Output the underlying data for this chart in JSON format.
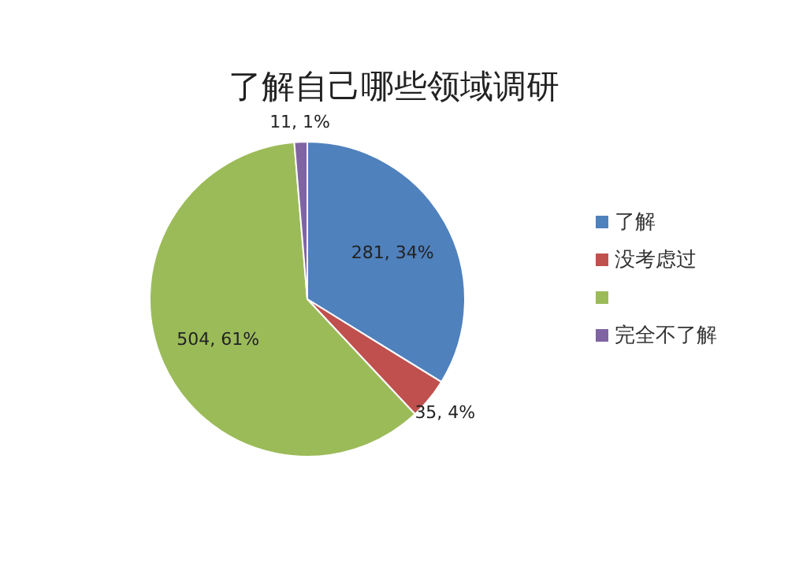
{
  "chart_data": {
    "type": "pie",
    "title": "了解自己哪些领域调研",
    "categories": [
      "了解",
      "没考虑过",
      null,
      "完全不了解"
    ],
    "values": [
      281,
      35,
      504,
      11
    ],
    "colors": [
      "#4f81bd",
      "#c0504d",
      "#9bbb59",
      "#8064a2"
    ],
    "value_labels": [
      "281, 34%",
      "35, 4%",
      "504, 61%",
      "11, 1%"
    ],
    "legend": "right"
  }
}
